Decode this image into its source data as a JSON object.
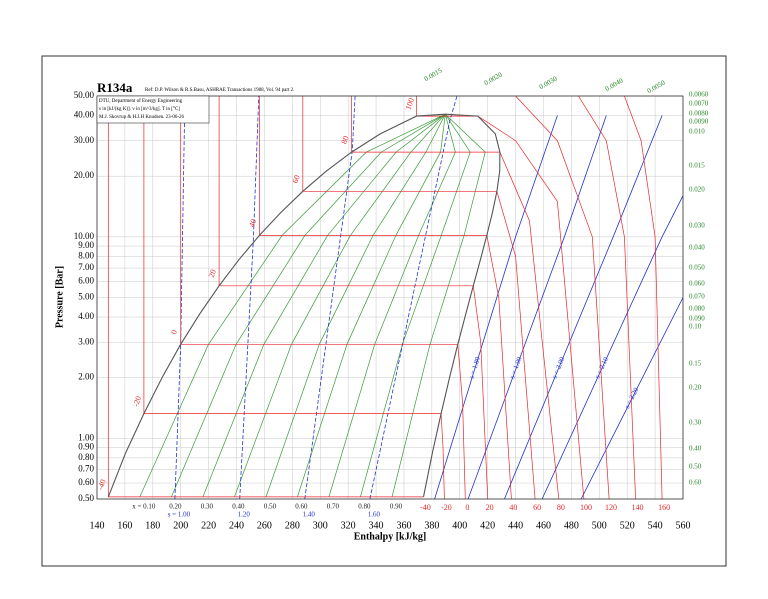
{
  "chart_data": {
    "type": "line",
    "title": "R134a",
    "subtitle": "Ref: D.P. Wilson & R.S.Basu, ASHRAE Transactions 1988, Vol. 94 part 2.",
    "notes": [
      "DTU, Department of Energy Engineering",
      "s in [kJ/(kg K)]. v in [m^3/kg]. T in [°C]",
      "M.J. Skovrup & H.J.H Knudsen. 23-06-26"
    ],
    "x_label": "Enthalpy [kJ/kg]",
    "y_label": "Pressure [Bar]",
    "xlim": [
      140,
      560
    ],
    "ylim": [
      0.5,
      50
    ],
    "ylog": true,
    "grid": true,
    "xticks": [
      140,
      160,
      180,
      200,
      220,
      240,
      260,
      280,
      300,
      320,
      340,
      360,
      380,
      400,
      420,
      440,
      460,
      480,
      500,
      520,
      540,
      560
    ],
    "yticks": [
      {
        "value": 0.5,
        "label": "0.50"
      },
      {
        "value": 0.6,
        "label": "0.60"
      },
      {
        "value": 0.7,
        "label": "0.70"
      },
      {
        "value": 0.8,
        "label": "0.80"
      },
      {
        "value": 0.9,
        "label": "0.90"
      },
      {
        "value": 1,
        "label": "1.00"
      },
      {
        "value": 2,
        "label": "2.00"
      },
      {
        "value": 3,
        "label": "3.00"
      },
      {
        "value": 4,
        "label": "4.00"
      },
      {
        "value": 5,
        "label": "5.00"
      },
      {
        "value": 6,
        "label": "6.00"
      },
      {
        "value": 7,
        "label": "7.00"
      },
      {
        "value": 8,
        "label": "8.00"
      },
      {
        "value": 9,
        "label": "9.00"
      },
      {
        "value": 10,
        "label": "10.00"
      },
      {
        "value": 20,
        "label": "20.00"
      },
      {
        "value": 30,
        "label": "30.00"
      },
      {
        "value": 40,
        "label": "40.00"
      },
      {
        "value": 50,
        "label": "50.00"
      }
    ],
    "saturation": {
      "color": "#555555",
      "x": [
        148.1,
        160.4,
        173.6,
        186.7,
        200.0,
        213.6,
        227.5,
        241.7,
        256.4,
        271.6,
        287.5,
        304.3,
        322.5,
        343.0,
        369.0,
        389.6,
        413.0,
        425.5,
        428.8,
        428.6,
        426.6,
        423.4,
        419.4,
        414.8,
        409.7,
        404.3,
        398.6,
        392.7,
        386.6,
        380.3,
        374.0
      ],
      "values": [
        0.512,
        0.844,
        1.327,
        2.006,
        2.928,
        4.146,
        5.717,
        7.702,
        10.166,
        13.18,
        16.82,
        21.17,
        26.33,
        32.44,
        39.72,
        40.59,
        39.72,
        32.44,
        26.33,
        21.17,
        16.82,
        13.18,
        10.166,
        7.702,
        5.717,
        4.146,
        2.928,
        2.006,
        1.327,
        0.844,
        0.512
      ]
    },
    "isotherms": [
      {
        "name": "-40",
        "color": "#e8262c",
        "x": [
          148.1,
          148.1,
          374.0
        ],
        "values": [
          50,
          0.512,
          0.512
        ]
      },
      {
        "name": "-20",
        "color": "#e8262c",
        "x": [
          173.6,
          173.6,
          386.6,
          388,
          389
        ],
        "values": [
          50,
          1.327,
          1.327,
          0.9,
          0.5
        ]
      },
      {
        "name": "0",
        "color": "#e8262c",
        "x": [
          200.0,
          200.0,
          398.6,
          402,
          404
        ],
        "values": [
          50,
          2.928,
          2.928,
          1.5,
          0.5
        ]
      },
      {
        "name": "20",
        "color": "#e8262c",
        "x": [
          227.5,
          227.5,
          409.7,
          415,
          420
        ],
        "values": [
          50,
          5.717,
          5.717,
          3,
          0.5
        ]
      },
      {
        "name": "40",
        "color": "#e8262c",
        "x": [
          256.4,
          256.4,
          419.4,
          428,
          437
        ],
        "values": [
          50,
          10.166,
          10.166,
          5,
          0.5
        ]
      },
      {
        "name": "60",
        "color": "#e8262c",
        "x": [
          287.5,
          287.5,
          426.6,
          440,
          454
        ],
        "values": [
          50,
          16.82,
          16.82,
          8,
          0.5
        ]
      },
      {
        "name": "80",
        "color": "#e8262c",
        "x": [
          322.5,
          322.5,
          428.8,
          450,
          471
        ],
        "values": [
          50,
          26.33,
          26.33,
          12,
          0.5
        ]
      },
      {
        "name": "100",
        "color": "#e8262c",
        "x": [
          369.0,
          369.0,
          413.0,
          440,
          470,
          489
        ],
        "values": [
          50,
          39.72,
          39.72,
          30,
          15,
          0.5
        ]
      },
      {
        "name": "120",
        "color": "#e8262c",
        "x": [
          440,
          470,
          495,
          507
        ],
        "values": [
          50,
          30,
          10,
          0.5
        ]
      },
      {
        "name": "140",
        "color": "#e8262c",
        "x": [
          485,
          505,
          518,
          526
        ],
        "values": [
          50,
          30,
          10,
          0.5
        ]
      },
      {
        "name": "160",
        "color": "#e8262c",
        "x": [
          518,
          530,
          540,
          545
        ],
        "values": [
          50,
          30,
          10,
          0.5
        ]
      }
    ],
    "quality_lines": [
      {
        "name": "x = 0.10",
        "color": "#3a9a3a",
        "x": [
          170.7,
          219.9,
          272.7,
          333.1,
          389.6
        ],
        "values": [
          0.512,
          2.928,
          10.166,
          26.33,
          40.59
        ]
      },
      {
        "name": "0.20",
        "color": "#3a9a3a",
        "x": [
          193.3,
          239.7,
          289.0,
          343.8,
          389.6
        ],
        "values": [
          0.512,
          2.928,
          10.166,
          26.33,
          40.59
        ]
      },
      {
        "name": "0.30",
        "color": "#3a9a3a",
        "x": [
          215.9,
          259.6,
          305.3,
          354.4,
          389.6
        ],
        "values": [
          0.512,
          2.928,
          10.166,
          26.33,
          40.59
        ]
      },
      {
        "name": "0.40",
        "color": "#3a9a3a",
        "x": [
          238.5,
          279.4,
          321.6,
          365.0,
          389.6
        ],
        "values": [
          0.512,
          2.928,
          10.166,
          26.33,
          40.59
        ]
      },
      {
        "name": "0.50",
        "color": "#3a9a3a",
        "x": [
          261.1,
          299.3,
          337.9,
          375.7,
          389.6
        ],
        "values": [
          0.512,
          2.928,
          10.166,
          26.33,
          40.59
        ]
      },
      {
        "name": "0.60",
        "color": "#3a9a3a",
        "x": [
          283.6,
          319.2,
          354.2,
          386.3,
          389.6
        ],
        "values": [
          0.512,
          2.928,
          10.166,
          26.33,
          40.59
        ]
      },
      {
        "name": "0.70",
        "color": "#3a9a3a",
        "x": [
          306.2,
          339.0,
          370.5,
          396.9,
          389.6
        ],
        "values": [
          0.512,
          2.928,
          10.166,
          26.33,
          40.59
        ]
      },
      {
        "name": "0.80",
        "color": "#3a9a3a",
        "x": [
          328.8,
          358.9,
          386.8,
          407.5,
          389.6
        ],
        "values": [
          0.512,
          2.928,
          10.166,
          26.33,
          40.59
        ]
      },
      {
        "name": "0.90",
        "color": "#3a9a3a",
        "x": [
          351.4,
          378.7,
          403.1,
          418.2,
          389.6
        ],
        "values": [
          0.512,
          2.928,
          10.166,
          26.33,
          40.59
        ]
      }
    ],
    "isentropes": [
      {
        "name": "s = 1.00",
        "color": "#2233cc",
        "x": [
          195.8,
          200.0,
          203
        ],
        "values": [
          0.5,
          2.928,
          50
        ]
      },
      {
        "name": "1.20",
        "color": "#2233cc",
        "x": [
          242.3,
          252,
          256
        ],
        "values": [
          0.5,
          9.6,
          50
        ]
      },
      {
        "name": "1.40",
        "color": "#2233cc",
        "x": [
          288.9,
          323,
          325
        ],
        "values": [
          0.5,
          26.8,
          50
        ]
      },
      {
        "name": "1.60",
        "color": "#2233cc",
        "x": [
          335.6,
          393,
          398
        ],
        "values": [
          0.5,
          38,
          50
        ]
      },
      {
        "name": "s = 1.80",
        "color": "#2233cc",
        "x": [
          382,
          440,
          470
        ],
        "values": [
          0.5,
          10,
          40
        ]
      },
      {
        "name": "s = 1.90",
        "color": "#2233cc",
        "x": [
          406,
          475,
          505
        ],
        "values": [
          0.5,
          10,
          40
        ]
      },
      {
        "name": "s = 2.00",
        "color": "#2233cc",
        "x": [
          432,
          510,
          545
        ],
        "values": [
          0.5,
          10,
          40
        ]
      },
      {
        "name": "s = 2.10",
        "color": "#2233cc",
        "x": [
          459,
          545,
          560
        ],
        "values": [
          0.5,
          10,
          16
        ]
      },
      {
        "name": "s = 2.20",
        "color": "#2233cc",
        "x": [
          487,
          560
        ],
        "values": [
          0.5,
          5
        ]
      }
    ],
    "volume_labels": [
      "0.0015",
      "0.0020",
      "0.0030",
      "0.0040",
      "0.0050",
      "0.0060",
      "0.0070",
      "0.0080",
      "0.0090",
      "0.010",
      "0.015",
      "0.020",
      "0.030",
      "0.040",
      "0.050",
      "0.060",
      "0.070",
      "0.080",
      "0.090",
      "0.10",
      "0.15",
      "0.20",
      "0.30",
      "0.40",
      "0.50",
      "0.60"
    ],
    "volume_color": "#2a8a2a"
  }
}
